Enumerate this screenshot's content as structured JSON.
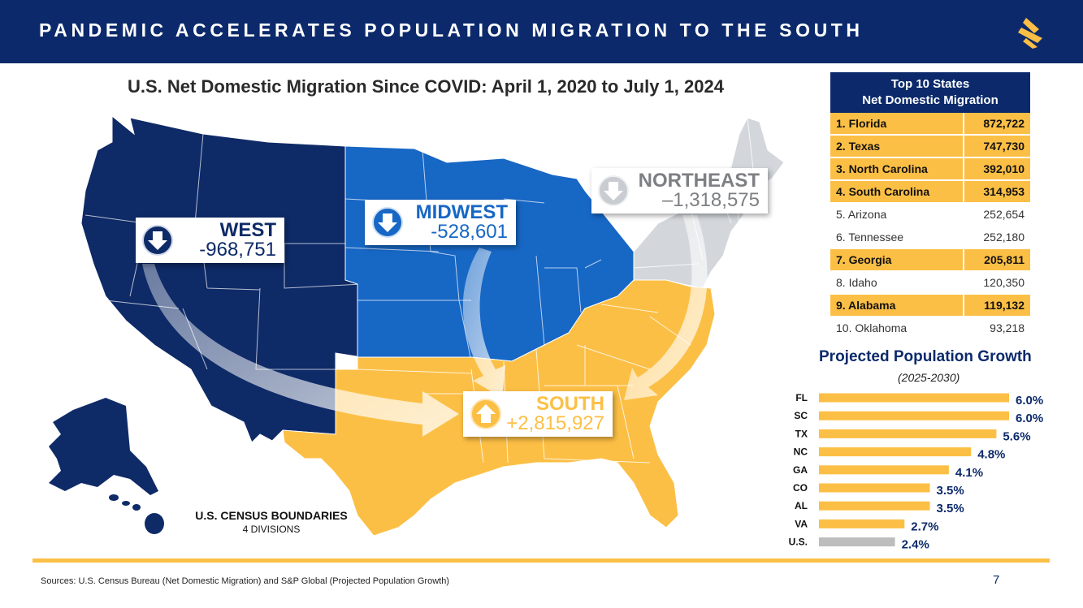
{
  "header": {
    "title": "PANDEMIC ACCELERATES POPULATION MIGRATION TO THE SOUTH"
  },
  "colors": {
    "navy": "#0c2a6b",
    "west": "#0e2a67",
    "midwest": "#1767c5",
    "northeast": "#d3d7dc",
    "south": "#fcbf45",
    "gold": "#fcbf45",
    "gray_bar": "#bdbdbd"
  },
  "map": {
    "title": "U.S. Net Domestic Migration Since COVID: April 1, 2020 to July 1, 2024",
    "regions": [
      {
        "name": "WEST",
        "value": "-968,751",
        "direction": "down"
      },
      {
        "name": "MIDWEST",
        "value": "-528,601",
        "direction": "down"
      },
      {
        "name": "NORTHEAST",
        "value": "–1,318,575",
        "direction": "down"
      },
      {
        "name": "SOUTH",
        "value": "+2,815,927",
        "direction": "up"
      }
    ],
    "legend_title": "U.S. CENSUS BOUNDARIES",
    "legend_subtitle": "4 DIVISIONS"
  },
  "top10": {
    "title_line1": "Top 10 States",
    "title_line2": "Net Domestic Migration",
    "rows": [
      {
        "label": "1. Florida",
        "value": "872,722",
        "highlight": true
      },
      {
        "label": "2. Texas",
        "value": "747,730",
        "highlight": true
      },
      {
        "label": "3. North Carolina",
        "value": "392,010",
        "highlight": true
      },
      {
        "label": "4. South Carolina",
        "value": "314,953",
        "highlight": true
      },
      {
        "label": "5. Arizona",
        "value": "252,654",
        "highlight": false
      },
      {
        "label": "6. Tennessee",
        "value": "252,180",
        "highlight": false
      },
      {
        "label": "7. Georgia",
        "value": "205,811",
        "highlight": true
      },
      {
        "label": "8. Idaho",
        "value": "120,350",
        "highlight": false
      },
      {
        "label": "9. Alabama",
        "value": "119,132",
        "highlight": true
      },
      {
        "label": "10. Oklahoma",
        "value": "93,218",
        "highlight": false
      }
    ]
  },
  "chart_data": {
    "type": "bar",
    "orientation": "horizontal",
    "title": "Projected Population Growth",
    "subtitle": "(2025-2030)",
    "categories": [
      "FL",
      "SC",
      "TX",
      "NC",
      "GA",
      "CO",
      "AL",
      "VA",
      "U.S."
    ],
    "values": [
      6.0,
      6.0,
      5.6,
      4.8,
      4.1,
      3.5,
      3.5,
      2.7,
      2.4
    ],
    "labels": [
      "6.0%",
      "6.0%",
      "5.6%",
      "4.8%",
      "4.1%",
      "3.5%",
      "3.5%",
      "2.7%",
      "2.4%"
    ],
    "xlim": [
      0,
      6.0
    ],
    "xlabel": "",
    "ylabel": ""
  },
  "footer": {
    "sources": "Sources: U.S. Census Bureau (Net Domestic Migration) and S&P Global (Projected Population Growth)",
    "page_number": "7"
  }
}
